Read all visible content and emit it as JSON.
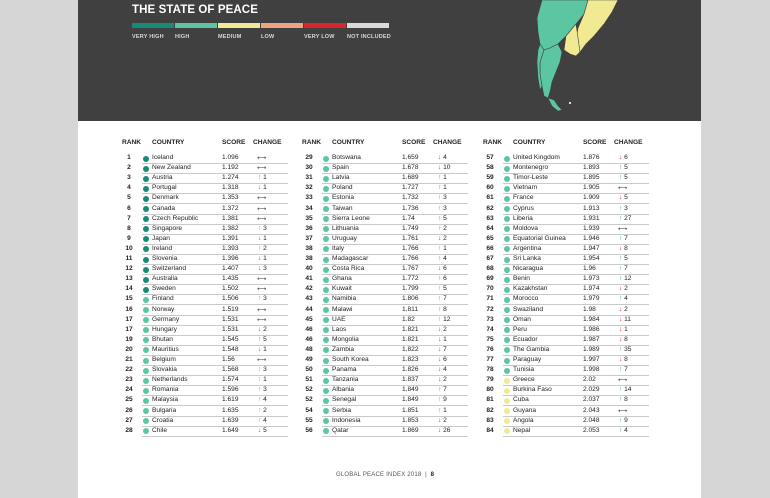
{
  "header": {
    "title": "THE STATE OF PEACE"
  },
  "legend": [
    {
      "label": "VERY HIGH",
      "color": "#1a8a78"
    },
    {
      "label": "HIGH",
      "color": "#5cc6a2"
    },
    {
      "label": "MEDIUM",
      "color": "#f1ea93"
    },
    {
      "label": "LOW",
      "color": "#f0a383"
    },
    {
      "label": "VERY LOW",
      "color": "#d7262e"
    },
    {
      "label": "NOT INCLUDED",
      "color": "#d9d9d9"
    }
  ],
  "columns": {
    "rank": "RANK",
    "country": "COUNTRY",
    "score": "SCORE",
    "change": "CHANGE"
  },
  "tables": [
    [
      {
        "rank": "1",
        "country": "Iceland",
        "score": "1.096",
        "dir": "same",
        "n": "",
        "lvl": "vh"
      },
      {
        "rank": "2",
        "country": "New Zealand",
        "score": "1.192",
        "dir": "same",
        "n": "",
        "lvl": "vh"
      },
      {
        "rank": "3",
        "country": "Austria",
        "score": "1.274",
        "dir": "up",
        "n": "1",
        "lvl": "vh"
      },
      {
        "rank": "4",
        "country": "Portugal",
        "score": "1.318",
        "dir": "down",
        "n": "1",
        "lvl": "vh"
      },
      {
        "rank": "5",
        "country": "Denmark",
        "score": "1.353",
        "dir": "same",
        "n": "",
        "lvl": "vh"
      },
      {
        "rank": "6",
        "country": "Canada",
        "score": "1.372",
        "dir": "same",
        "n": "",
        "lvl": "vh"
      },
      {
        "rank": "7",
        "country": "Czech Republic",
        "score": "1.381",
        "dir": "same",
        "n": "",
        "lvl": "vh"
      },
      {
        "rank": "8",
        "country": "Singapore",
        "score": "1.382",
        "dir": "up",
        "n": "3",
        "lvl": "vh"
      },
      {
        "rank": "9",
        "country": "Japan",
        "score": "1.391",
        "dir": "down",
        "n": "1",
        "lvl": "vh"
      },
      {
        "rank": "10",
        "country": "Ireland",
        "score": "1.393",
        "dir": "up",
        "n": "2",
        "lvl": "vh"
      },
      {
        "rank": "11",
        "country": "Slovenia",
        "score": "1.396",
        "dir": "down",
        "n": "1",
        "lvl": "vh"
      },
      {
        "rank": "12",
        "country": "Switzerland",
        "score": "1.407",
        "dir": "down",
        "n": "3",
        "lvl": "vh"
      },
      {
        "rank": "13",
        "country": "Australia",
        "score": "1.435",
        "dir": "same",
        "n": "",
        "lvl": "vh"
      },
      {
        "rank": "14",
        "country": "Sweden",
        "score": "1.502",
        "dir": "same",
        "n": "",
        "lvl": "vh"
      },
      {
        "rank": "15",
        "country": "Finland",
        "score": "1.506",
        "dir": "up",
        "n": "3",
        "lvl": "h"
      },
      {
        "rank": "16",
        "country": "Norway",
        "score": "1.519",
        "dir": "same",
        "n": "",
        "lvl": "h"
      },
      {
        "rank": "17",
        "country": "Germany",
        "score": "1.531",
        "dir": "same",
        "n": "",
        "lvl": "h"
      },
      {
        "rank": "17",
        "country": "Hungary",
        "score": "1.531",
        "dir": "down",
        "n": "2",
        "lvl": "h"
      },
      {
        "rank": "19",
        "country": "Bhutan",
        "score": "1.545",
        "dir": "up",
        "n": "5",
        "lvl": "h"
      },
      {
        "rank": "20",
        "country": "Mauritius",
        "score": "1.548",
        "dir": "down",
        "n": "1",
        "lvl": "h"
      },
      {
        "rank": "21",
        "country": "Belgium",
        "score": "1.56",
        "dir": "same",
        "n": "",
        "lvl": "h"
      },
      {
        "rank": "22",
        "country": "Slovakia",
        "score": "1.568",
        "dir": "up",
        "n": "3",
        "lvl": "h"
      },
      {
        "rank": "23",
        "country": "Netherlands",
        "score": "1.574",
        "dir": "up",
        "n": "1",
        "lvl": "h"
      },
      {
        "rank": "24",
        "country": "Romania",
        "score": "1.596",
        "dir": "up",
        "n": "3",
        "lvl": "h"
      },
      {
        "rank": "25",
        "country": "Malaysia",
        "score": "1.619",
        "dir": "up",
        "n": "4",
        "lvl": "h"
      },
      {
        "rank": "26",
        "country": "Bulgaria",
        "score": "1.635",
        "dir": "up",
        "n": "2",
        "lvl": "h"
      },
      {
        "rank": "27",
        "country": "Croatia",
        "score": "1.639",
        "dir": "up",
        "n": "4",
        "lvl": "h"
      },
      {
        "rank": "28",
        "country": "Chile",
        "score": "1.649",
        "dir": "down",
        "n": "5",
        "lvl": "h"
      }
    ],
    [
      {
        "rank": "29",
        "country": "Botswana",
        "score": "1.659",
        "dir": "down",
        "n": "4",
        "lvl": "h"
      },
      {
        "rank": "30",
        "country": "Spain",
        "score": "1.678",
        "dir": "down",
        "n": "10",
        "lvl": "h"
      },
      {
        "rank": "31",
        "country": "Latvia",
        "score": "1.689",
        "dir": "up",
        "n": "1",
        "lvl": "h"
      },
      {
        "rank": "32",
        "country": "Poland",
        "score": "1.727",
        "dir": "up",
        "n": "1",
        "lvl": "h"
      },
      {
        "rank": "33",
        "country": "Estonia",
        "score": "1.732",
        "dir": "up",
        "n": "3",
        "lvl": "h"
      },
      {
        "rank": "34",
        "country": "Taiwan",
        "score": "1.736",
        "dir": "up",
        "n": "3",
        "lvl": "h"
      },
      {
        "rank": "35",
        "country": "Sierra Leone",
        "score": "1.74",
        "dir": "up",
        "n": "5",
        "lvl": "h"
      },
      {
        "rank": "36",
        "country": "Lithuania",
        "score": "1.749",
        "dir": "up",
        "n": "2",
        "lvl": "h"
      },
      {
        "rank": "37",
        "country": "Uruguay",
        "score": "1.761",
        "dir": "down",
        "n": "2",
        "lvl": "h"
      },
      {
        "rank": "38",
        "country": "Italy",
        "score": "1.766",
        "dir": "up",
        "n": "1",
        "lvl": "h"
      },
      {
        "rank": "38",
        "country": "Madagascar",
        "score": "1.766",
        "dir": "up",
        "n": "4",
        "lvl": "h"
      },
      {
        "rank": "40",
        "country": "Costa Rica",
        "score": "1.767",
        "dir": "down",
        "n": "6",
        "lvl": "h"
      },
      {
        "rank": "41",
        "country": "Ghana",
        "score": "1.772",
        "dir": "up",
        "n": "6",
        "lvl": "h"
      },
      {
        "rank": "42",
        "country": "Kuwait",
        "score": "1.799",
        "dir": "up",
        "n": "5",
        "lvl": "h"
      },
      {
        "rank": "43",
        "country": "Namibia",
        "score": "1.806",
        "dir": "up",
        "n": "7",
        "lvl": "h"
      },
      {
        "rank": "44",
        "country": "Malawi",
        "score": "1.811",
        "dir": "up",
        "n": "8",
        "lvl": "h"
      },
      {
        "rank": "45",
        "country": "UAE",
        "score": "1.82",
        "dir": "up",
        "n": "12",
        "lvl": "h"
      },
      {
        "rank": "46",
        "country": "Laos",
        "score": "1.821",
        "dir": "down",
        "n": "2",
        "lvl": "h"
      },
      {
        "rank": "46",
        "country": "Mongolia",
        "score": "1.821",
        "dir": "down",
        "n": "1",
        "lvl": "h"
      },
      {
        "rank": "48",
        "country": "Zambia",
        "score": "1.822",
        "dir": "down",
        "n": "7",
        "lvl": "h"
      },
      {
        "rank": "49",
        "country": "South Korea",
        "score": "1.823",
        "dir": "down",
        "n": "6",
        "lvl": "h"
      },
      {
        "rank": "50",
        "country": "Panama",
        "score": "1.826",
        "dir": "down",
        "n": "4",
        "lvl": "h"
      },
      {
        "rank": "51",
        "country": "Tanzania",
        "score": "1.837",
        "dir": "down",
        "n": "2",
        "lvl": "h"
      },
      {
        "rank": "52",
        "country": "Albania",
        "score": "1.849",
        "dir": "up",
        "n": "7",
        "lvl": "h"
      },
      {
        "rank": "52",
        "country": "Senegal",
        "score": "1.849",
        "dir": "up",
        "n": "9",
        "lvl": "h"
      },
      {
        "rank": "54",
        "country": "Serbia",
        "score": "1.851",
        "dir": "up",
        "n": "1",
        "lvl": "h"
      },
      {
        "rank": "55",
        "country": "Indonesia",
        "score": "1.853",
        "dir": "down",
        "n": "2",
        "lvl": "h"
      },
      {
        "rank": "56",
        "country": "Qatar",
        "score": "1.869",
        "dir": "down",
        "n": "26",
        "lvl": "h"
      }
    ],
    [
      {
        "rank": "57",
        "country": "United Kingdom",
        "score": "1.876",
        "dir": "down",
        "n": "6",
        "lvl": "h"
      },
      {
        "rank": "58",
        "country": "Montenegro",
        "score": "1.893",
        "dir": "up",
        "n": "5",
        "lvl": "h"
      },
      {
        "rank": "59",
        "country": "Timor-Leste",
        "score": "1.895",
        "dir": "up",
        "n": "5",
        "lvl": "h"
      },
      {
        "rank": "60",
        "country": "Vietnam",
        "score": "1.905",
        "dir": "same",
        "n": "",
        "lvl": "h"
      },
      {
        "rank": "61",
        "country": "France",
        "score": "1.909",
        "dir": "down",
        "n": "5",
        "lvl": "h"
      },
      {
        "rank": "62",
        "country": "Cyprus",
        "score": "1.913",
        "dir": "up",
        "n": "3",
        "lvl": "h"
      },
      {
        "rank": "63",
        "country": "Liberia",
        "score": "1.931",
        "dir": "up",
        "n": "27",
        "lvl": "h"
      },
      {
        "rank": "64",
        "country": "Moldova",
        "score": "1.939",
        "dir": "same",
        "n": "",
        "lvl": "h"
      },
      {
        "rank": "65",
        "country": "Equatorial Guinea",
        "score": "1.946",
        "dir": "up",
        "n": "7",
        "lvl": "h"
      },
      {
        "rank": "66",
        "country": "Argentina",
        "score": "1.947",
        "dir": "down",
        "n": "8",
        "lvl": "h"
      },
      {
        "rank": "67",
        "country": "Sri Lanka",
        "score": "1.954",
        "dir": "up",
        "n": "5",
        "lvl": "h"
      },
      {
        "rank": "68",
        "country": "Nicaragua",
        "score": "1.96",
        "dir": "up",
        "n": "7",
        "lvl": "h"
      },
      {
        "rank": "69",
        "country": "Benin",
        "score": "1.973",
        "dir": "up",
        "n": "12",
        "lvl": "h"
      },
      {
        "rank": "70",
        "country": "Kazakhstan",
        "score": "1.974",
        "dir": "down",
        "n": "2",
        "lvl": "h"
      },
      {
        "rank": "71",
        "country": "Morocco",
        "score": "1.979",
        "dir": "up",
        "n": "4",
        "lvl": "h"
      },
      {
        "rank": "72",
        "country": "Swaziland",
        "score": "1.98",
        "dir": "down",
        "n": "2",
        "lvl": "h"
      },
      {
        "rank": "73",
        "country": "Oman",
        "score": "1.984",
        "dir": "down",
        "n": "11",
        "lvl": "h"
      },
      {
        "rank": "74",
        "country": "Peru",
        "score": "1.986",
        "dir": "down",
        "n": "1",
        "lvl": "h"
      },
      {
        "rank": "75",
        "country": "Ecuador",
        "score": "1.987",
        "dir": "down",
        "n": "8",
        "lvl": "h"
      },
      {
        "rank": "76",
        "country": "The Gambia",
        "score": "1.989",
        "dir": "up",
        "n": "35",
        "lvl": "h"
      },
      {
        "rank": "77",
        "country": "Paraguay",
        "score": "1.997",
        "dir": "down",
        "n": "8",
        "lvl": "h"
      },
      {
        "rank": "78",
        "country": "Tunisia",
        "score": "1.998",
        "dir": "up",
        "n": "7",
        "lvl": "h"
      },
      {
        "rank": "79",
        "country": "Greece",
        "score": "2.02",
        "dir": "same",
        "n": "",
        "lvl": "m"
      },
      {
        "rank": "80",
        "country": "Burkina Faso",
        "score": "2.029",
        "dir": "up",
        "n": "14",
        "lvl": "m"
      },
      {
        "rank": "81",
        "country": "Cuba",
        "score": "2.037",
        "dir": "up",
        "n": "8",
        "lvl": "m"
      },
      {
        "rank": "82",
        "country": "Guyana",
        "score": "2.043",
        "dir": "same",
        "n": "",
        "lvl": "m"
      },
      {
        "rank": "83",
        "country": "Angola",
        "score": "2.048",
        "dir": "up",
        "n": "9",
        "lvl": "m"
      },
      {
        "rank": "84",
        "country": "Nepal",
        "score": "2.053",
        "dir": "up",
        "n": "4",
        "lvl": "m"
      }
    ]
  ],
  "level_colors": {
    "vh": "#1a8a78",
    "h": "#5cc6a2",
    "m": "#f1ea93"
  },
  "change_icons": {
    "up": "arrow-up-icon",
    "down": "arrow-down-icon",
    "same": "left-right-arrow-icon"
  },
  "footer": {
    "text": "GLOBAL PEACE INDEX 2018",
    "page": "8"
  }
}
